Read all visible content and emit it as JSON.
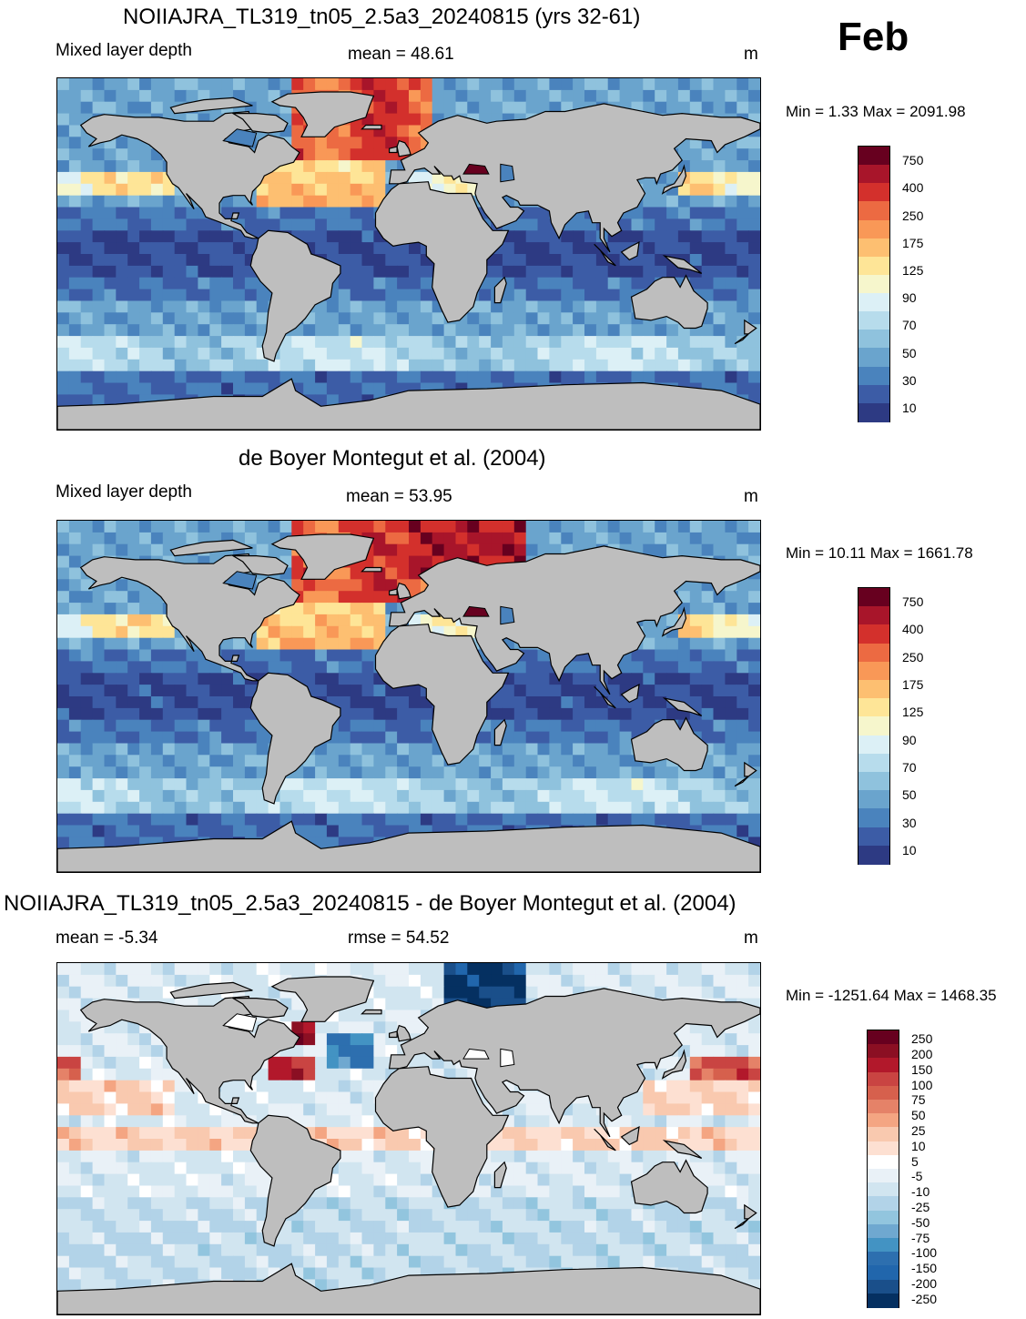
{
  "month": "Feb",
  "panels": [
    {
      "title": "NOIIAJRA_TL319_tn05_2.5a3_20240815 (yrs 32-61)",
      "left_label": "Mixed layer depth",
      "center_label": "mean =  48.61",
      "units": "m",
      "minmax": "Min =   1.33 Max = 2091.98",
      "palette": "mld",
      "colorbar": {
        "labels": [
          "750",
          "400",
          "250",
          "175",
          "125",
          "90",
          "70",
          "50",
          "30",
          "10"
        ],
        "colors": [
          "#67001f",
          "#a8152a",
          "#d3302c",
          "#ec6a42",
          "#f99857",
          "#fdbf71",
          "#fee597",
          "#f6f6cc",
          "#dcf0f6",
          "#b7dcec",
          "#8fc2dd",
          "#6aa4cd",
          "#4a83bd",
          "#3c5ca6",
          "#2d3a83"
        ]
      }
    },
    {
      "title": "de Boyer Montegut et al. (2004)",
      "left_label": "Mixed layer depth",
      "center_label": "mean =  53.95",
      "units": "m",
      "minmax": "Min =  10.11 Max = 1661.78",
      "palette": "mld",
      "colorbar": {
        "labels": [
          "750",
          "400",
          "250",
          "175",
          "125",
          "90",
          "70",
          "50",
          "30",
          "10"
        ],
        "colors": [
          "#67001f",
          "#a8152a",
          "#d3302c",
          "#ec6a42",
          "#f99857",
          "#fdbf71",
          "#fee597",
          "#f6f6cc",
          "#dcf0f6",
          "#b7dcec",
          "#8fc2dd",
          "#6aa4cd",
          "#4a83bd",
          "#3c5ca6",
          "#2d3a83"
        ]
      }
    },
    {
      "title": "NOIIAJRA_TL319_tn05_2.5a3_20240815 - de Boyer Montegut et al. (2004)",
      "left_label": "mean =  -5.34",
      "center_label": "rmse =  54.52",
      "units": "m",
      "minmax": "Min = -1251.64 Max = 1468.35",
      "palette": "diff",
      "colorbar": {
        "labels": [
          "250",
          "200",
          "150",
          "100",
          "75",
          "50",
          "25",
          "10",
          "5",
          "-5",
          "-10",
          "-25",
          "-50",
          "-75",
          "-100",
          "-150",
          "-200",
          "-250"
        ],
        "colors": [
          "#67001f",
          "#8b0f23",
          "#b2182b",
          "#c94442",
          "#d6604d",
          "#e58268",
          "#f4a582",
          "#f9c9af",
          "#fde0d2",
          "#ffffff",
          "#e9f1f7",
          "#d1e5f0",
          "#b2d3e8",
          "#92c5de",
          "#6fa8d0",
          "#4393c3",
          "#2d6faf",
          "#2166ac",
          "#1a4f8a",
          "#053061"
        ]
      }
    }
  ],
  "land_color": "#bebebe"
}
